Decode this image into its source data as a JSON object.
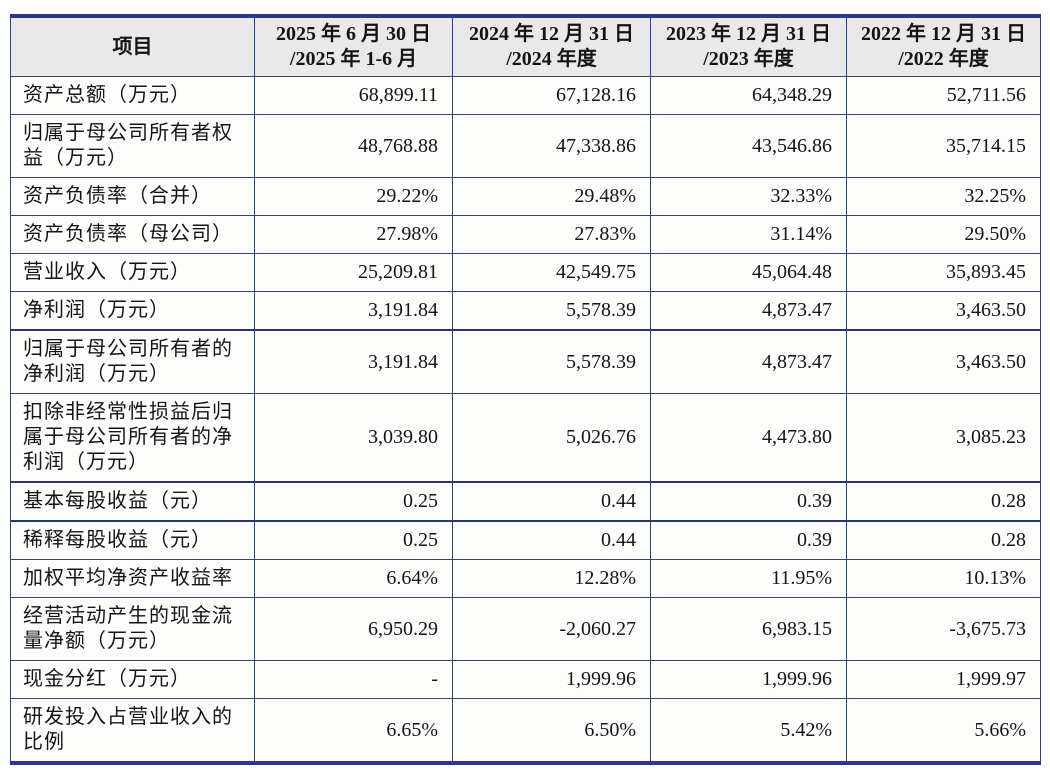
{
  "table": {
    "columns": [
      "项目",
      "2025 年 6 月 30 日\n/2025 年 1-6 月",
      "2024 年 12 月 31 日\n/2024 年度",
      "2023 年 12 月 31 日\n/2023 年度",
      "2022 年 12 月 31 日\n/2022 年度"
    ],
    "rows": [
      {
        "label": "资产总额（万元）",
        "values": [
          "68,899.11",
          "67,128.16",
          "64,348.29",
          "52,711.56"
        ]
      },
      {
        "label": "归属于母公司所有者权益（万元）",
        "values": [
          "48,768.88",
          "47,338.86",
          "43,546.86",
          "35,714.15"
        ]
      },
      {
        "label": "资产负债率（合并）",
        "values": [
          "29.22%",
          "29.48%",
          "32.33%",
          "32.25%"
        ]
      },
      {
        "label": "资产负债率（母公司）",
        "values": [
          "27.98%",
          "27.83%",
          "31.14%",
          "29.50%"
        ]
      },
      {
        "label": "营业收入（万元）",
        "values": [
          "25,209.81",
          "42,549.75",
          "45,064.48",
          "35,893.45"
        ]
      },
      {
        "label": "净利润（万元）",
        "values": [
          "3,191.84",
          "5,578.39",
          "4,873.47",
          "3,463.50"
        ]
      },
      {
        "label": "归属于母公司所有者的净利润（万元）",
        "values": [
          "3,191.84",
          "5,578.39",
          "4,873.47",
          "3,463.50"
        ]
      },
      {
        "label": "扣除非经常性损益后归属于母公司所有者的净利润（万元）",
        "values": [
          "3,039.80",
          "5,026.76",
          "4,473.80",
          "3,085.23"
        ]
      },
      {
        "label": "基本每股收益（元）",
        "values": [
          "0.25",
          "0.44",
          "0.39",
          "0.28"
        ]
      },
      {
        "label": "稀释每股收益（元）",
        "values": [
          "0.25",
          "0.44",
          "0.39",
          "0.28"
        ]
      },
      {
        "label": "加权平均净资产收益率",
        "values": [
          "6.64%",
          "12.28%",
          "11.95%",
          "10.13%"
        ]
      },
      {
        "label": "经营活动产生的现金流量净额（万元）",
        "values": [
          "6,950.29",
          "-2,060.27",
          "6,983.15",
          "-3,675.73"
        ]
      },
      {
        "label": "现金分红（万元）",
        "values": [
          "-",
          "1,999.96",
          "1,999.96",
          "1,999.97"
        ]
      },
      {
        "label": "研发投入占营业收入的比例",
        "values": [
          "6.65%",
          "6.50%",
          "5.42%",
          "5.66%"
        ]
      }
    ]
  },
  "colors": {
    "border_thin": "#39426e",
    "border_strong": "#2c366e",
    "border_outer": "#2d3491",
    "header_background": "#e9e9e9",
    "text": "#141414"
  }
}
